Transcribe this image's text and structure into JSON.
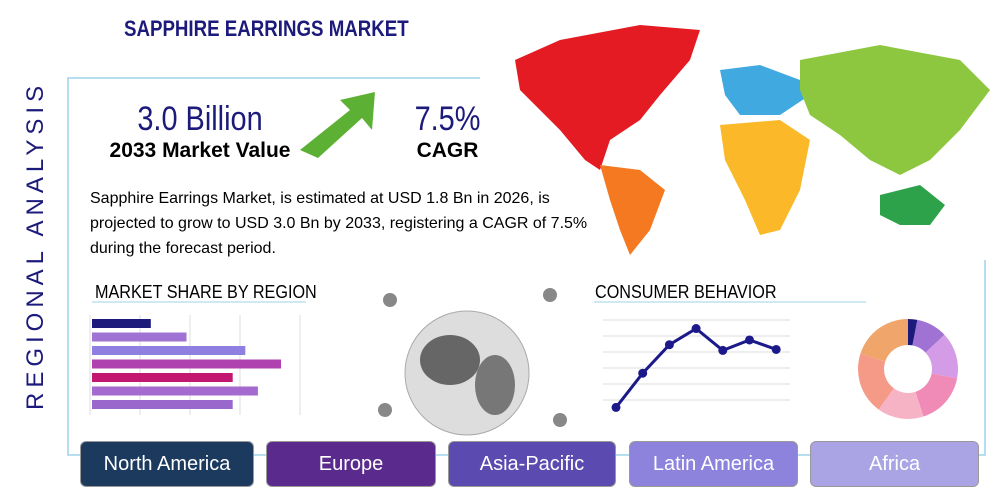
{
  "title": "SAPPHIRE EARRINGS MARKET",
  "side_label": "REGIONAL ANALYSIS",
  "stats": [
    {
      "value": "3.0 Billion",
      "label": "2033 Market Value"
    },
    {
      "value": "7.5%",
      "label": "CAGR"
    }
  ],
  "description": "Sapphire Earrings Market, is estimated at USD 1.8 Bn in 2026, is projected to grow to USD 3.0 Bn by 2033, registering a CAGR of 7.5% during the forecast period.",
  "market_share": {
    "type": "bar",
    "title": "MARKET SHARE BY REGION",
    "values": [
      28,
      45,
      73,
      90,
      67,
      79,
      67
    ],
    "colors": [
      "#1c1a7a",
      "#9f72d4",
      "#8f7fe0",
      "#b042b0",
      "#c2186f",
      "#a46ad0",
      "#9a68cc"
    ]
  },
  "consumer_behavior": {
    "type": "line",
    "title": "CONSUMER BEHAVIOR",
    "color": "#1c1a8a",
    "values": [
      8,
      44,
      74,
      91,
      68,
      79,
      69
    ]
  },
  "donut": {
    "type": "pie",
    "values": [
      3,
      10,
      15,
      17,
      15,
      20,
      20
    ],
    "colors": [
      "#1c1a7a",
      "#9f72d4",
      "#d49be6",
      "#f08bb8",
      "#f7b3c6",
      "#f59a86",
      "#f0a56a"
    ]
  },
  "regions": [
    {
      "name": "North America",
      "color": "#1b3a5e"
    },
    {
      "name": "Europe",
      "color": "#5a2a8c"
    },
    {
      "name": "Asia-Pacific",
      "color": "#5b4bb0"
    },
    {
      "name": "Latin America",
      "color": "#8d82dc"
    },
    {
      "name": "Africa",
      "color": "#aaa4e4"
    }
  ]
}
